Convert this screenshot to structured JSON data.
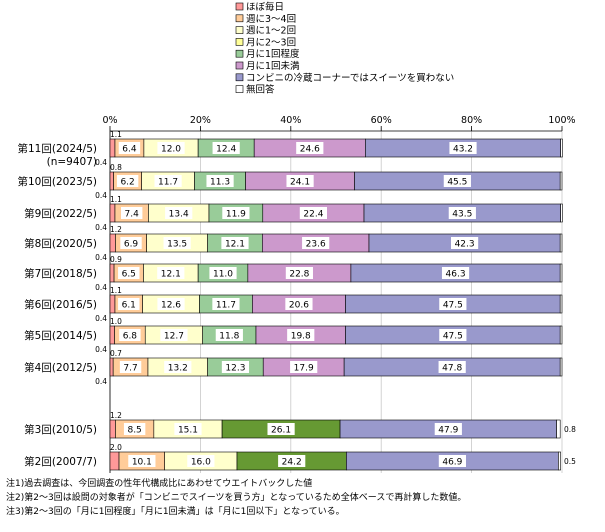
{
  "chart_data": {
    "type": "bar",
    "orientation": "horizontal",
    "stacked": true,
    "percent": true,
    "xlim": [
      0,
      100
    ],
    "x_ticks": [
      "0%",
      "20%",
      "40%",
      "60%",
      "80%",
      "100%"
    ],
    "legend_position": "top",
    "series": [
      {
        "name": "ほぼ毎日",
        "color": "#ff9999"
      },
      {
        "name": "週に3～4回",
        "color": "#ffcc99"
      },
      {
        "name": "週に1～2回",
        "color": "#ffffcc"
      },
      {
        "name": "月に2～3回",
        "color": "#ffff99"
      },
      {
        "name": "月に1回程度",
        "color": "#99cc99"
      },
      {
        "name": "月に1回未満",
        "color": "#cc99cc"
      },
      {
        "name": "コンビニの冷蔵コーナーではスイーツを買わない",
        "color": "#9999cc"
      },
      {
        "name": "無回答",
        "color": "#ffffff"
      }
    ],
    "merged_series_name": "月に1回以下",
    "merged_color": "#669933",
    "rows": [
      {
        "category": "第11回(2024/5)",
        "sub": "(n=9407)",
        "labels": [
          "1.1",
          "6.4",
          "12.0",
          "",
          "12.4",
          "24.6",
          "43.2",
          "0.4"
        ],
        "values": [
          1.1,
          6.4,
          12.0,
          0.0,
          12.4,
          24.6,
          43.2,
          0.4
        ],
        "merged": false
      },
      {
        "category": "第10回(2023/5)",
        "labels": [
          "0.8",
          "6.2",
          "11.7",
          "",
          "11.3",
          "24.1",
          "45.5",
          "0.4"
        ],
        "values": [
          0.8,
          6.2,
          11.7,
          0.0,
          11.3,
          24.1,
          45.5,
          0.4
        ],
        "merged": false
      },
      {
        "category": "第9回(2022/5)",
        "labels": [
          "1.1",
          "7.4",
          "13.4",
          "",
          "11.9",
          "22.4",
          "43.5",
          "0.4"
        ],
        "values": [
          1.1,
          7.4,
          13.4,
          0.0,
          11.9,
          22.4,
          43.5,
          0.4
        ],
        "merged": false
      },
      {
        "category": "第8回(2020/5)",
        "labels": [
          "1.2",
          "6.9",
          "13.5",
          "",
          "12.1",
          "23.6",
          "42.3",
          "0.4"
        ],
        "values": [
          1.2,
          6.9,
          13.5,
          0.0,
          12.1,
          23.6,
          42.3,
          0.4
        ],
        "merged": false
      },
      {
        "category": "第7回(2018/5)",
        "labels": [
          "0.9",
          "6.5",
          "12.1",
          "",
          "11.0",
          "22.8",
          "46.3",
          "0.4"
        ],
        "values": [
          0.9,
          6.5,
          12.1,
          0.0,
          11.0,
          22.8,
          46.3,
          0.4
        ],
        "merged": false
      },
      {
        "category": "第6回(2016/5)",
        "labels": [
          "1.1",
          "6.1",
          "12.6",
          "",
          "11.7",
          "20.6",
          "47.5",
          "0.4"
        ],
        "values": [
          1.1,
          6.1,
          12.6,
          0.0,
          11.7,
          20.6,
          47.5,
          0.4
        ],
        "merged": false
      },
      {
        "category": "第5回(2014/5)",
        "labels": [
          "1.0",
          "6.8",
          "12.7",
          "",
          "11.8",
          "19.8",
          "47.5",
          "0.4"
        ],
        "values": [
          1.0,
          6.8,
          12.7,
          0.0,
          11.8,
          19.8,
          47.5,
          0.4
        ],
        "merged": false
      },
      {
        "category": "第4回(2012/5)",
        "labels": [
          "0.7",
          "7.7",
          "13.2",
          "",
          "12.3",
          "17.9",
          "47.8",
          "0.4"
        ],
        "values": [
          0.7,
          7.7,
          13.2,
          0.0,
          12.3,
          17.9,
          47.8,
          0.4
        ],
        "merged": false
      },
      {
        "category": "第3回(2010/5)",
        "labels": [
          "1.2",
          "8.5",
          "15.1",
          "26.1",
          "",
          "",
          "47.9",
          "0.8"
        ],
        "values": [
          1.2,
          8.5,
          15.1,
          26.1,
          0,
          0,
          47.9,
          0.8
        ],
        "merged": true
      },
      {
        "category": "第2回(2007/7)",
        "labels": [
          "2.0",
          "10.1",
          "16.0",
          "24.2",
          "",
          "",
          "46.9",
          "0.5"
        ],
        "values": [
          2.0,
          10.1,
          16.0,
          24.2,
          0,
          0,
          46.9,
          0.5
        ],
        "merged": true
      }
    ],
    "notes": [
      "注1)過去調査は、今回調査の性年代構成比にあわせてウエイトバックした値",
      "注2)第2～3回は設問の対象者が「コンビニでスイーツを買う方」となっているため全体ベースで再計算した数値。",
      "注3)第2～3回の「月に1回程度」「月に1回未満」は「月に1回以下」となっている。"
    ]
  }
}
